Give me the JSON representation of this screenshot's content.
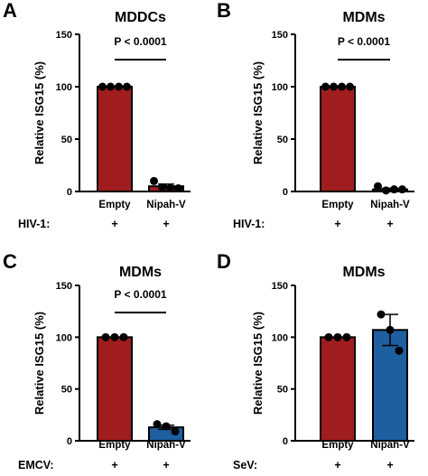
{
  "chart_data": [
    {
      "panel": "A",
      "type": "bar",
      "title": "MDDCs",
      "ylabel": "Relative ISG15 (%)",
      "ylim": [
        0,
        150
      ],
      "yticks": [
        0,
        50,
        100,
        150
      ],
      "categories": [
        "Empty",
        "Nipah-V"
      ],
      "values": [
        100,
        5
      ],
      "errors": [
        0,
        2
      ],
      "points": [
        [
          100,
          100,
          100,
          100
        ],
        [
          10,
          4,
          3,
          3
        ]
      ],
      "bar_colors": [
        "#a01d1d",
        "#a01d1d"
      ],
      "treatment_label": "HIV-1:",
      "treatment_values": [
        "+",
        "+"
      ],
      "significance": "P < 0.0001"
    },
    {
      "panel": "B",
      "type": "bar",
      "title": "MDMs",
      "ylabel": "Relative ISG15 (%)",
      "ylim": [
        0,
        150
      ],
      "yticks": [
        0,
        50,
        100,
        150
      ],
      "categories": [
        "Empty",
        "Nipah-V"
      ],
      "values": [
        100,
        2
      ],
      "errors": [
        0,
        1
      ],
      "points": [
        [
          100,
          100,
          100,
          100
        ],
        [
          5,
          1,
          2,
          2
        ]
      ],
      "bar_colors": [
        "#a01d1d",
        "#a01d1d"
      ],
      "treatment_label": "HIV-1:",
      "treatment_values": [
        "+",
        "+"
      ],
      "significance": "P < 0.0001"
    },
    {
      "panel": "C",
      "type": "bar",
      "title": "MDMs",
      "ylabel": "Relative ISG15 (%)",
      "ylim": [
        0,
        150
      ],
      "yticks": [
        0,
        50,
        100,
        150
      ],
      "categories": [
        "Empty",
        "Nipah-V"
      ],
      "values": [
        100,
        13
      ],
      "errors": [
        0,
        2
      ],
      "points": [
        [
          100,
          100,
          100
        ],
        [
          16,
          14,
          9
        ]
      ],
      "bar_colors": [
        "#a01d1d",
        "#1e5fa0"
      ],
      "treatment_label": "EMCV:",
      "treatment_values": [
        "+",
        "+"
      ],
      "significance": "P < 0.0001"
    },
    {
      "panel": "D",
      "type": "bar",
      "title": "MDMs",
      "ylabel": "Relative ISG15 (%)",
      "ylim": [
        0,
        150
      ],
      "yticks": [
        0,
        50,
        100,
        150
      ],
      "categories": [
        "Empty",
        "Nipah-V"
      ],
      "values": [
        100,
        107
      ],
      "errors": [
        0,
        15
      ],
      "points": [
        [
          100,
          100,
          100
        ],
        [
          122,
          107,
          87
        ]
      ],
      "bar_colors": [
        "#a01d1d",
        "#1e5fa0"
      ],
      "treatment_label": "SeV:",
      "treatment_values": [
        "+",
        "+"
      ],
      "significance": ""
    }
  ]
}
